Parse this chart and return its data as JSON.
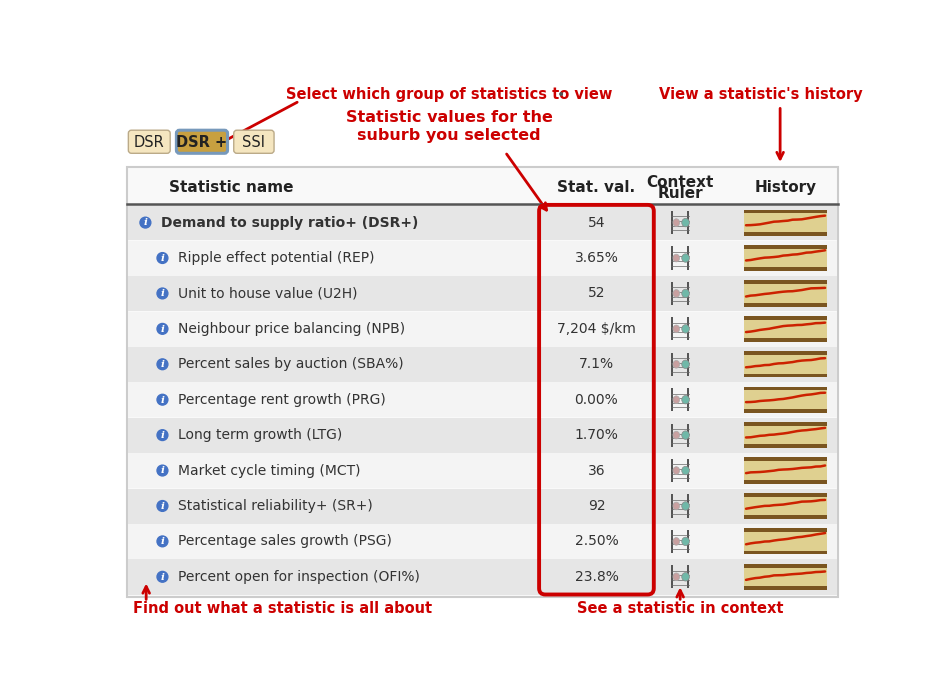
{
  "bg_color": "#ffffff",
  "tab_buttons": [
    "DSR",
    "DSR +",
    "SSI"
  ],
  "active_tab": 1,
  "tab_bg_inactive": "#f5e6c0",
  "tab_bg_active": "#c8a040",
  "tab_border_active": "#7799bb",
  "col_headers": [
    "Statistic name",
    "Stat. val.",
    "Context\nRuler",
    "History"
  ],
  "annotations": {
    "top_left_label": "Select which group of statistics to view",
    "top_right_label": "View a statistic's history",
    "mid_label": "Statistic values for the\nsuburb you selected",
    "bottom_left_label": "Find out what a statistic is all about",
    "bottom_right_label": "See a statistic in context"
  },
  "rows": [
    {
      "name": "Demand to supply ratio+ (DSR+)",
      "value": "54",
      "indent": false,
      "bold": true
    },
    {
      "name": "Ripple effect potential (REP)",
      "value": "3.65%",
      "indent": true,
      "bold": false
    },
    {
      "name": "Unit to house value (U2H)",
      "value": "52",
      "indent": true,
      "bold": false
    },
    {
      "name": "Neighbour price balancing (NPB)",
      "value": "7,204 $/km",
      "indent": true,
      "bold": false
    },
    {
      "name": "Percent sales by auction (SBA%)",
      "value": "7.1%",
      "indent": true,
      "bold": false
    },
    {
      "name": "Percentage rent growth (PRG)",
      "value": "0.00%",
      "indent": true,
      "bold": false
    },
    {
      "name": "Long term growth (LTG)",
      "value": "1.70%",
      "indent": true,
      "bold": false
    },
    {
      "name": "Market cycle timing (MCT)",
      "value": "36",
      "indent": true,
      "bold": false
    },
    {
      "name": "Statistical reliability+ (SR+)",
      "value": "92",
      "indent": true,
      "bold": false
    },
    {
      "name": "Percentage sales growth (PSG)",
      "value": "2.50%",
      "indent": true,
      "bold": false
    },
    {
      "name": "Percent open for inspection (OFI%)",
      "value": "23.8%",
      "indent": true,
      "bold": false
    }
  ],
  "red_color": "#cc0000",
  "arrow_color": "#cc0000",
  "info_icon_color": "#4472c4",
  "ruler_bead1": "#c8a0a0",
  "ruler_bead2": "#70b8a8",
  "ruler_bar": "#888888",
  "hist_bg": "#dfd090",
  "hist_bar_top": "#7a5520",
  "hist_line": "#cc2200"
}
